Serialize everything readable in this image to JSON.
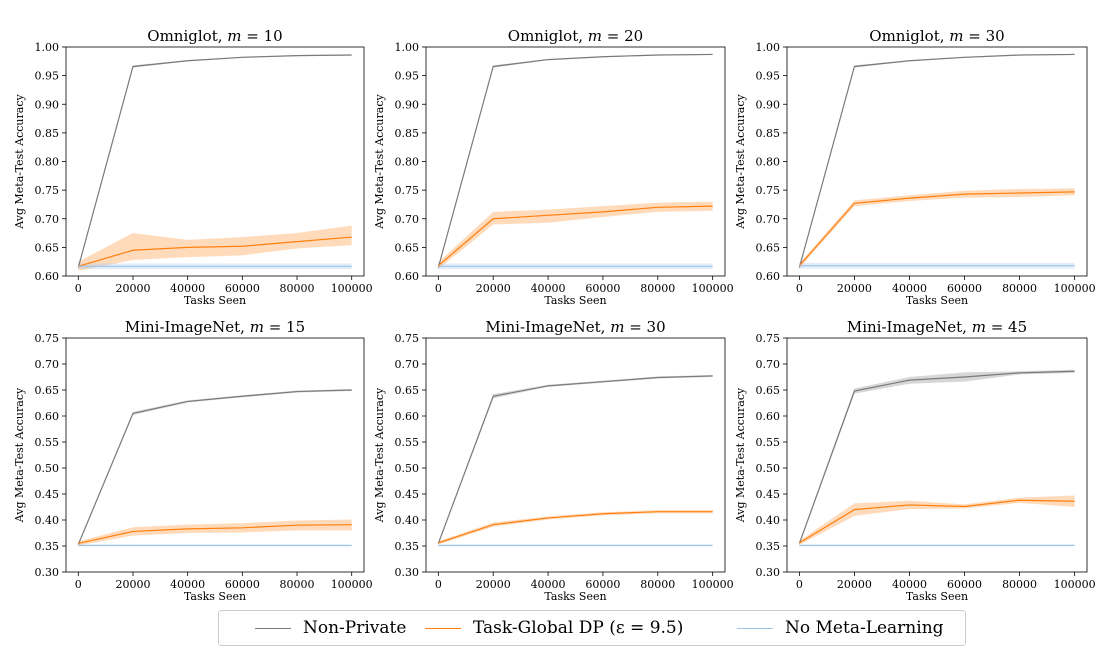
{
  "colors": {
    "non_private": "#7a7a7a",
    "task_global_dp": "#ff7f0e",
    "no_meta": "#9ec5ea"
  },
  "legend": {
    "items": [
      {
        "label": "Non-Private",
        "color": "#7a7a7a"
      },
      {
        "label": "Task-Global DP (ε = 9.5)",
        "color": "#ff7f0e"
      },
      {
        "label": "No Meta-Learning",
        "color": "#9ec5ea"
      }
    ]
  },
  "chart_data": [
    {
      "type": "line",
      "title": "Omniglot, m = 10",
      "xlabel": "Tasks Seen",
      "ylabel": "Avg Meta-Test Accuracy",
      "x": [
        0,
        20000,
        40000,
        60000,
        80000,
        100000
      ],
      "xticks": [
        "0",
        "20000",
        "40000",
        "60000",
        "80000",
        "100000"
      ],
      "ylim": [
        0.6,
        1.0
      ],
      "yticks": [
        "0.60",
        "0.65",
        "0.70",
        "0.75",
        "0.80",
        "0.85",
        "0.90",
        "0.95",
        "1.00"
      ],
      "series": [
        {
          "name": "Non-Private",
          "values": [
            0.615,
            0.966,
            0.976,
            0.982,
            0.985,
            0.986
          ],
          "lo": [
            0.613,
            0.964,
            0.975,
            0.981,
            0.984,
            0.985
          ],
          "hi": [
            0.617,
            0.968,
            0.977,
            0.983,
            0.986,
            0.987
          ]
        },
        {
          "name": "Task-Global DP (ε = 9.5)",
          "values": [
            0.617,
            0.645,
            0.65,
            0.652,
            0.66,
            0.668
          ],
          "lo": [
            0.609,
            0.628,
            0.633,
            0.636,
            0.648,
            0.654
          ],
          "hi": [
            0.625,
            0.675,
            0.663,
            0.668,
            0.675,
            0.688
          ]
        },
        {
          "name": "No Meta-Learning",
          "values": [
            0.617,
            0.617,
            0.617,
            0.617,
            0.617,
            0.617
          ],
          "lo": [
            0.612,
            0.612,
            0.612,
            0.612,
            0.612,
            0.612
          ],
          "hi": [
            0.622,
            0.622,
            0.622,
            0.622,
            0.622,
            0.622
          ]
        }
      ]
    },
    {
      "type": "line",
      "title": "Omniglot, m = 20",
      "xlabel": "Tasks Seen",
      "ylabel": "Avg Meta-Test Accuracy",
      "x": [
        0,
        20000,
        40000,
        60000,
        80000,
        100000
      ],
      "xticks": [
        "0",
        "20000",
        "40000",
        "60000",
        "80000",
        "100000"
      ],
      "ylim": [
        0.6,
        1.0
      ],
      "yticks": [
        "0.60",
        "0.65",
        "0.70",
        "0.75",
        "0.80",
        "0.85",
        "0.90",
        "0.95",
        "1.00"
      ],
      "series": [
        {
          "name": "Non-Private",
          "values": [
            0.615,
            0.966,
            0.978,
            0.983,
            0.986,
            0.987
          ],
          "lo": [
            0.613,
            0.964,
            0.977,
            0.982,
            0.985,
            0.986
          ],
          "hi": [
            0.617,
            0.968,
            0.979,
            0.984,
            0.987,
            0.988
          ]
        },
        {
          "name": "Task-Global DP (ε = 9.5)",
          "values": [
            0.618,
            0.7,
            0.706,
            0.712,
            0.72,
            0.722
          ],
          "lo": [
            0.612,
            0.69,
            0.693,
            0.703,
            0.712,
            0.714
          ],
          "hi": [
            0.624,
            0.712,
            0.716,
            0.722,
            0.728,
            0.73
          ]
        },
        {
          "name": "No Meta-Learning",
          "values": [
            0.617,
            0.617,
            0.617,
            0.617,
            0.617,
            0.617
          ],
          "lo": [
            0.612,
            0.612,
            0.612,
            0.612,
            0.612,
            0.612
          ],
          "hi": [
            0.622,
            0.622,
            0.622,
            0.622,
            0.622,
            0.622
          ]
        }
      ]
    },
    {
      "type": "line",
      "title": "Omniglot, m = 30",
      "xlabel": "Tasks Seen",
      "ylabel": "Avg Meta-Test Accuracy",
      "x": [
        0,
        20000,
        40000,
        60000,
        80000,
        100000
      ],
      "xticks": [
        "0",
        "20000",
        "40000",
        "60000",
        "80000",
        "100000"
      ],
      "ylim": [
        0.6,
        1.0
      ],
      "yticks": [
        "0.60",
        "0.65",
        "0.70",
        "0.75",
        "0.80",
        "0.85",
        "0.90",
        "0.95",
        "1.00"
      ],
      "series": [
        {
          "name": "Non-Private",
          "values": [
            0.615,
            0.966,
            0.976,
            0.982,
            0.986,
            0.987
          ],
          "lo": [
            0.613,
            0.964,
            0.975,
            0.981,
            0.985,
            0.986
          ],
          "hi": [
            0.617,
            0.968,
            0.977,
            0.983,
            0.987,
            0.988
          ]
        },
        {
          "name": "Task-Global DP (ε = 9.5)",
          "values": [
            0.618,
            0.727,
            0.736,
            0.743,
            0.745,
            0.747
          ],
          "lo": [
            0.614,
            0.722,
            0.731,
            0.737,
            0.738,
            0.741
          ],
          "hi": [
            0.622,
            0.732,
            0.741,
            0.749,
            0.752,
            0.753
          ]
        },
        {
          "name": "No Meta-Learning",
          "values": [
            0.618,
            0.618,
            0.618,
            0.618,
            0.618,
            0.618
          ],
          "lo": [
            0.613,
            0.613,
            0.613,
            0.613,
            0.613,
            0.613
          ],
          "hi": [
            0.623,
            0.623,
            0.623,
            0.623,
            0.623,
            0.623
          ]
        }
      ]
    },
    {
      "type": "line",
      "title": "Mini-ImageNet, m = 15",
      "xlabel": "Tasks Seen",
      "ylabel": "Avg Meta-Test Accuracy",
      "x": [
        0,
        20000,
        40000,
        60000,
        80000,
        100000
      ],
      "xticks": [
        "0",
        "20000",
        "40000",
        "60000",
        "80000",
        "100000"
      ],
      "ylim": [
        0.3,
        0.75
      ],
      "yticks": [
        "0.30",
        "0.35",
        "0.40",
        "0.45",
        "0.50",
        "0.55",
        "0.60",
        "0.65",
        "0.70",
        "0.75"
      ],
      "series": [
        {
          "name": "Non-Private",
          "values": [
            0.353,
            0.605,
            0.628,
            0.638,
            0.647,
            0.65
          ],
          "lo": [
            0.351,
            0.602,
            0.626,
            0.636,
            0.645,
            0.648
          ],
          "hi": [
            0.355,
            0.608,
            0.63,
            0.64,
            0.649,
            0.652
          ]
        },
        {
          "name": "Task-Global DP (ε = 9.5)",
          "values": [
            0.355,
            0.378,
            0.383,
            0.385,
            0.39,
            0.391
          ],
          "lo": [
            0.351,
            0.37,
            0.375,
            0.376,
            0.38,
            0.38
          ],
          "hi": [
            0.359,
            0.386,
            0.391,
            0.394,
            0.399,
            0.401
          ]
        },
        {
          "name": "No Meta-Learning",
          "values": [
            0.351,
            0.351,
            0.351,
            0.351,
            0.351,
            0.351
          ],
          "lo": [
            0.349,
            0.349,
            0.349,
            0.349,
            0.349,
            0.349
          ],
          "hi": [
            0.353,
            0.353,
            0.353,
            0.353,
            0.353,
            0.353
          ]
        }
      ]
    },
    {
      "type": "line",
      "title": "Mini-ImageNet, m = 30",
      "xlabel": "Tasks Seen",
      "ylabel": "Avg Meta-Test Accuracy",
      "x": [
        0,
        20000,
        40000,
        60000,
        80000,
        100000
      ],
      "xticks": [
        "0",
        "20000",
        "40000",
        "60000",
        "80000",
        "100000"
      ],
      "ylim": [
        0.3,
        0.75
      ],
      "yticks": [
        "0.30",
        "0.35",
        "0.40",
        "0.45",
        "0.50",
        "0.55",
        "0.60",
        "0.65",
        "0.70",
        "0.75"
      ],
      "series": [
        {
          "name": "Non-Private",
          "values": [
            0.355,
            0.638,
            0.658,
            0.666,
            0.674,
            0.677
          ],
          "lo": [
            0.353,
            0.634,
            0.656,
            0.664,
            0.672,
            0.675
          ],
          "hi": [
            0.357,
            0.642,
            0.66,
            0.668,
            0.676,
            0.679
          ]
        },
        {
          "name": "Task-Global DP (ε = 9.5)",
          "values": [
            0.356,
            0.391,
            0.404,
            0.412,
            0.416,
            0.416
          ],
          "lo": [
            0.353,
            0.387,
            0.401,
            0.409,
            0.413,
            0.413
          ],
          "hi": [
            0.359,
            0.395,
            0.407,
            0.415,
            0.419,
            0.419
          ]
        },
        {
          "name": "No Meta-Learning",
          "values": [
            0.351,
            0.351,
            0.351,
            0.351,
            0.351,
            0.351
          ],
          "lo": [
            0.349,
            0.349,
            0.349,
            0.349,
            0.349,
            0.349
          ],
          "hi": [
            0.353,
            0.353,
            0.353,
            0.353,
            0.353,
            0.353
          ]
        }
      ]
    },
    {
      "type": "line",
      "title": "Mini-ImageNet, m = 45",
      "xlabel": "Tasks Seen",
      "ylabel": "Avg Meta-Test Accuracy",
      "x": [
        0,
        20000,
        40000,
        60000,
        80000,
        100000
      ],
      "xticks": [
        "0",
        "20000",
        "40000",
        "60000",
        "80000",
        "100000"
      ],
      "ylim": [
        0.3,
        0.75
      ],
      "yticks": [
        "0.30",
        "0.35",
        "0.40",
        "0.45",
        "0.50",
        "0.55",
        "0.60",
        "0.65",
        "0.70",
        "0.75"
      ],
      "series": [
        {
          "name": "Non-Private",
          "values": [
            0.355,
            0.648,
            0.669,
            0.675,
            0.683,
            0.686
          ],
          "lo": [
            0.352,
            0.643,
            0.662,
            0.666,
            0.68,
            0.683
          ],
          "hi": [
            0.358,
            0.653,
            0.675,
            0.684,
            0.686,
            0.689
          ]
        },
        {
          "name": "Task-Global DP (ε = 9.5)",
          "values": [
            0.356,
            0.42,
            0.429,
            0.426,
            0.438,
            0.436
          ],
          "lo": [
            0.352,
            0.408,
            0.421,
            0.422,
            0.433,
            0.425
          ],
          "hi": [
            0.36,
            0.432,
            0.437,
            0.43,
            0.443,
            0.447
          ]
        },
        {
          "name": "No Meta-Learning",
          "values": [
            0.351,
            0.351,
            0.351,
            0.351,
            0.351,
            0.351
          ],
          "lo": [
            0.349,
            0.349,
            0.349,
            0.349,
            0.349,
            0.349
          ],
          "hi": [
            0.353,
            0.353,
            0.353,
            0.353,
            0.353,
            0.353
          ]
        }
      ]
    }
  ]
}
